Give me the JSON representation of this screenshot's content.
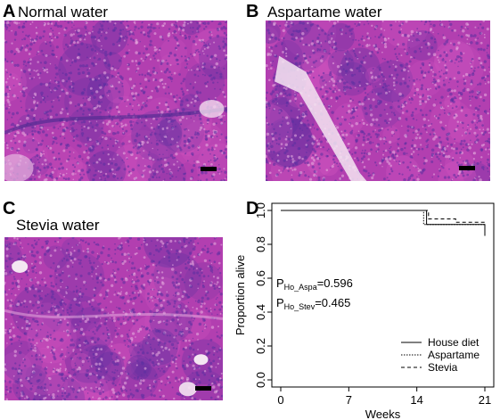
{
  "panels": {
    "a": {
      "letter": "A",
      "title": "Normal water"
    },
    "b": {
      "letter": "B",
      "title": "Aspartame water"
    },
    "c": {
      "letter": "C",
      "title": "Stevia water"
    },
    "d": {
      "letter": "D"
    }
  },
  "colors": {
    "tissue_base": "#b23fb0",
    "tissue_pink": "#d357c1",
    "tissue_dark": "#5a2fa0",
    "background_white": "#f4e6f2"
  },
  "chart_data": {
    "type": "line",
    "title": "",
    "xlabel": "Weeks",
    "ylabel": "Proportion alive",
    "xlim": [
      0,
      21
    ],
    "ylim": [
      0.0,
      1.0
    ],
    "xticks": [
      "0",
      "7",
      "14",
      "21"
    ],
    "yticks": [
      "0.0",
      "0.2",
      "0.4",
      "0.6",
      "0.8",
      "1.0"
    ],
    "grid": false,
    "legend_position": "bottom-right",
    "series": [
      {
        "name": "House diet",
        "style": "solid",
        "x": [
          0,
          15,
          15,
          21,
          21
        ],
        "y": [
          1.0,
          1.0,
          0.917,
          0.917,
          0.85
        ]
      },
      {
        "name": "Aspartame",
        "style": "dotted",
        "x": [
          0,
          14.7,
          14.7,
          21
        ],
        "y": [
          1.0,
          1.0,
          0.917,
          0.917
        ]
      },
      {
        "name": "Stevia",
        "style": "dashed",
        "x": [
          0,
          15.2,
          15.2,
          18,
          18,
          21
        ],
        "y": [
          1.0,
          1.0,
          0.95,
          0.95,
          0.93,
          0.93
        ]
      }
    ],
    "annotations": [
      {
        "prefix": "P",
        "subscript": "Ho_Aspa",
        "suffix": "=0.596"
      },
      {
        "prefix": "P",
        "subscript": "Ho_Stev",
        "suffix": "=0.465"
      }
    ]
  }
}
